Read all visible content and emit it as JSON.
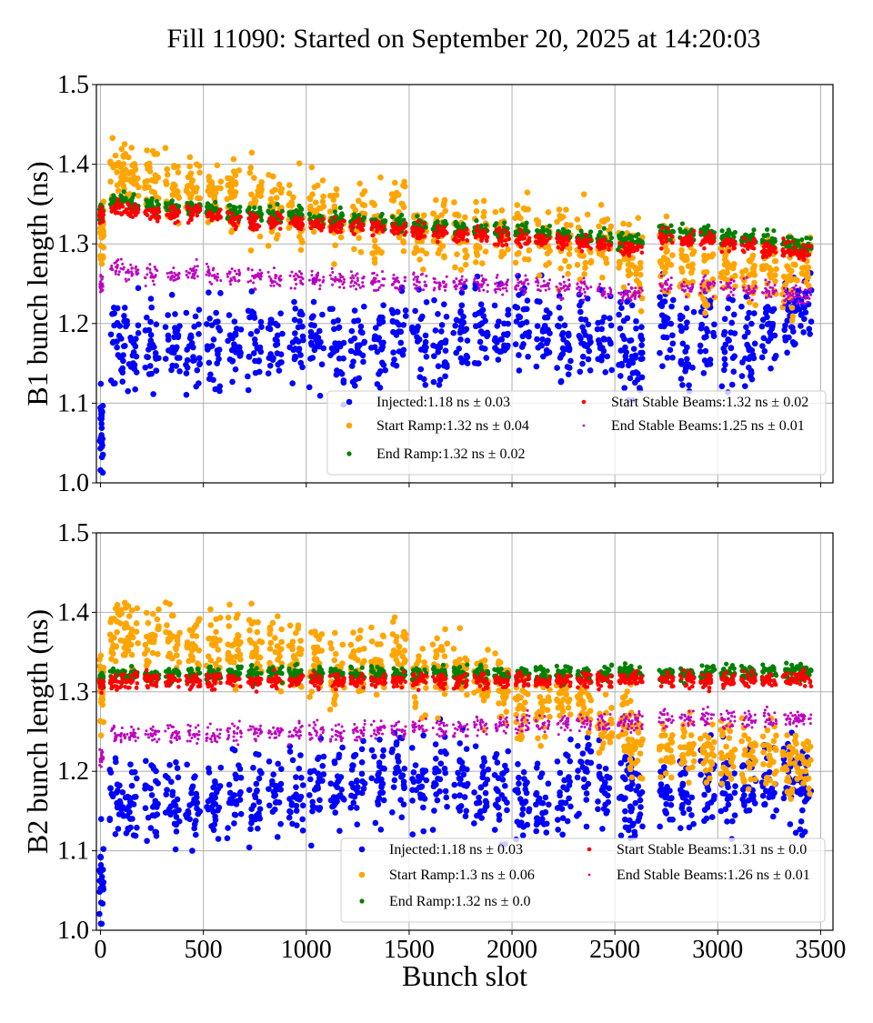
{
  "figure": {
    "title": "Fill 11090: Started on September 20, 2025 at 14:20:03"
  },
  "chart_data": [
    {
      "type": "scatter",
      "panel": "top",
      "ylabel": "B1 bunch length (ns)",
      "xlabel": "",
      "xlim": [
        -20,
        3560
      ],
      "ylim": [
        1.0,
        1.5
      ],
      "xticks": [
        0,
        500,
        1000,
        1500,
        2000,
        2500,
        3000,
        3500
      ],
      "xtick_labels_shown": false,
      "yticks": [
        1.0,
        1.1,
        1.2,
        1.3,
        1.4,
        1.5
      ],
      "ytick_labels": [
        "1.0",
        "1.1",
        "1.2",
        "1.3",
        "1.4",
        "1.5"
      ],
      "grid": true,
      "legend_position": "lower-right",
      "legend_columns": 2,
      "series": [
        {
          "name": "Injected:1.18 ns ± 0.03",
          "color": "#0000ff",
          "marker": "large-dot",
          "mean": 1.18,
          "std": 0.03,
          "x": [
            5,
            80,
            150,
            250,
            350,
            450,
            550,
            650,
            750,
            850,
            950,
            1050,
            1150,
            1250,
            1350,
            1450,
            1550,
            1650,
            1750,
            1850,
            1950,
            2050,
            2150,
            2250,
            2350,
            2450,
            2550,
            2600,
            2750,
            2850,
            2950,
            3050,
            3150,
            3250,
            3350,
            3420
          ],
          "y": [
            1.06,
            1.17,
            1.18,
            1.17,
            1.17,
            1.17,
            1.18,
            1.17,
            1.18,
            1.18,
            1.18,
            1.18,
            1.17,
            1.17,
            1.18,
            1.19,
            1.18,
            1.17,
            1.18,
            1.19,
            1.18,
            1.2,
            1.19,
            1.18,
            1.19,
            1.18,
            1.17,
            1.16,
            1.2,
            1.17,
            1.19,
            1.18,
            1.17,
            1.2,
            1.21,
            1.22
          ]
        },
        {
          "name": "Start Ramp:1.32 ns ± 0.04",
          "color": "#ffa500",
          "marker": "large-dot",
          "mean": 1.32,
          "std": 0.04,
          "x": [
            5,
            80,
            150,
            250,
            350,
            450,
            550,
            650,
            750,
            850,
            950,
            1050,
            1150,
            1250,
            1350,
            1450,
            1550,
            1650,
            1750,
            1850,
            1950,
            2050,
            2150,
            2250,
            2350,
            2450,
            2550,
            2600,
            2750,
            2850,
            2950,
            3050,
            3150,
            3250,
            3350,
            3420
          ],
          "y": [
            1.32,
            1.39,
            1.39,
            1.38,
            1.37,
            1.37,
            1.37,
            1.36,
            1.35,
            1.35,
            1.34,
            1.34,
            1.33,
            1.33,
            1.33,
            1.34,
            1.32,
            1.32,
            1.31,
            1.31,
            1.31,
            1.31,
            1.3,
            1.3,
            1.3,
            1.3,
            1.29,
            1.27,
            1.29,
            1.28,
            1.25,
            1.27,
            1.26,
            1.27,
            1.26,
            1.27
          ]
        },
        {
          "name": "End Ramp:1.32 ns ± 0.02",
          "color": "#008000",
          "marker": "dot",
          "mean": 1.32,
          "std": 0.02,
          "x": [
            5,
            80,
            150,
            250,
            350,
            450,
            550,
            650,
            750,
            850,
            950,
            1050,
            1150,
            1250,
            1350,
            1450,
            1550,
            1650,
            1750,
            1850,
            1950,
            2050,
            2150,
            2250,
            2350,
            2450,
            2550,
            2600,
            2750,
            2850,
            2950,
            3050,
            3150,
            3250,
            3350,
            3420
          ],
          "y": [
            1.34,
            1.354,
            1.352,
            1.348,
            1.346,
            1.346,
            1.343,
            1.34,
            1.337,
            1.336,
            1.335,
            1.333,
            1.331,
            1.329,
            1.327,
            1.326,
            1.324,
            1.322,
            1.32,
            1.318,
            1.316,
            1.315,
            1.313,
            1.311,
            1.309,
            1.307,
            1.303,
            1.302,
            1.316,
            1.313,
            1.312,
            1.309,
            1.306,
            1.303,
            1.3,
            1.298
          ]
        },
        {
          "name": "Start Stable Beams:1.32 ns ± 0.02",
          "color": "#ff0000",
          "marker": "small-dot",
          "mean": 1.32,
          "std": 0.02,
          "x": [
            5,
            80,
            150,
            250,
            350,
            450,
            550,
            650,
            750,
            850,
            950,
            1050,
            1150,
            1250,
            1350,
            1450,
            1550,
            1650,
            1750,
            1850,
            1950,
            2050,
            2150,
            2250,
            2350,
            2450,
            2550,
            2600,
            2750,
            2850,
            2950,
            3050,
            3150,
            3250,
            3350,
            3420
          ],
          "y": [
            1.335,
            1.345,
            1.343,
            1.34,
            1.338,
            1.338,
            1.335,
            1.332,
            1.329,
            1.328,
            1.327,
            1.325,
            1.323,
            1.321,
            1.319,
            1.318,
            1.316,
            1.314,
            1.312,
            1.31,
            1.308,
            1.307,
            1.305,
            1.303,
            1.301,
            1.299,
            1.295,
            1.294,
            1.308,
            1.305,
            1.304,
            1.301,
            1.298,
            1.295,
            1.292,
            1.29
          ]
        },
        {
          "name": "End Stable Beams:1.25 ns ± 0.01",
          "color": "#bf00bf",
          "marker": "tiny-dot",
          "mean": 1.25,
          "std": 0.01,
          "x": [
            5,
            80,
            150,
            250,
            350,
            450,
            550,
            650,
            750,
            850,
            950,
            1050,
            1150,
            1250,
            1350,
            1450,
            1550,
            1650,
            1750,
            1850,
            1950,
            2050,
            2150,
            2250,
            2350,
            2450,
            2550,
            2600,
            2750,
            2850,
            2950,
            3050,
            3150,
            3250,
            3350,
            3420
          ],
          "y": [
            1.25,
            1.27,
            1.265,
            1.262,
            1.26,
            1.262,
            1.26,
            1.258,
            1.258,
            1.257,
            1.256,
            1.255,
            1.255,
            1.254,
            1.253,
            1.252,
            1.252,
            1.25,
            1.25,
            1.249,
            1.248,
            1.25,
            1.247,
            1.245,
            1.243,
            1.24,
            1.238,
            1.237,
            1.25,
            1.247,
            1.248,
            1.246,
            1.243,
            1.24,
            1.238,
            1.236
          ]
        }
      ]
    },
    {
      "type": "scatter",
      "panel": "bottom",
      "ylabel": "B2 bunch length (ns)",
      "xlabel": "Bunch slot",
      "xlim": [
        -20,
        3560
      ],
      "ylim": [
        1.0,
        1.5
      ],
      "xticks": [
        0,
        500,
        1000,
        1500,
        2000,
        2500,
        3000,
        3500
      ],
      "xtick_labels": [
        "0",
        "500",
        "1000",
        "1500",
        "2000",
        "2500",
        "3000",
        "3500"
      ],
      "yticks": [
        1.0,
        1.1,
        1.2,
        1.3,
        1.4,
        1.5
      ],
      "ytick_labels": [
        "1.0",
        "1.1",
        "1.2",
        "1.3",
        "1.4",
        "1.5"
      ],
      "grid": true,
      "legend_position": "lower-right",
      "legend_columns": 2,
      "series": [
        {
          "name": "Injected:1.18 ns ± 0.03",
          "color": "#0000ff",
          "marker": "large-dot",
          "mean": 1.18,
          "std": 0.03,
          "x": [
            5,
            80,
            150,
            250,
            350,
            450,
            550,
            650,
            750,
            850,
            950,
            1050,
            1150,
            1250,
            1350,
            1450,
            1550,
            1650,
            1750,
            1850,
            1950,
            2050,
            2150,
            2250,
            2350,
            2450,
            2550,
            2600,
            2750,
            2850,
            2950,
            3050,
            3150,
            3250,
            3350,
            3420
          ],
          "y": [
            1.06,
            1.16,
            1.16,
            1.17,
            1.17,
            1.16,
            1.16,
            1.17,
            1.17,
            1.17,
            1.18,
            1.18,
            1.18,
            1.18,
            1.19,
            1.2,
            1.18,
            1.19,
            1.19,
            1.18,
            1.17,
            1.16,
            1.16,
            1.18,
            1.19,
            1.18,
            1.19,
            1.16,
            1.17,
            1.17,
            1.18,
            1.18,
            1.18,
            1.19,
            1.19,
            1.18
          ]
        },
        {
          "name": "Start Ramp:1.3 ns ± 0.06",
          "color": "#ffa500",
          "marker": "large-dot",
          "mean": 1.3,
          "std": 0.06,
          "x": [
            5,
            80,
            150,
            250,
            350,
            450,
            550,
            650,
            750,
            850,
            950,
            1050,
            1150,
            1250,
            1350,
            1450,
            1550,
            1650,
            1750,
            1850,
            1950,
            2050,
            2150,
            2250,
            2350,
            2450,
            2550,
            2600,
            2750,
            2850,
            2950,
            3050,
            3150,
            3250,
            3350,
            3420
          ],
          "y": [
            1.3,
            1.375,
            1.37,
            1.37,
            1.37,
            1.36,
            1.36,
            1.36,
            1.36,
            1.35,
            1.34,
            1.34,
            1.33,
            1.34,
            1.34,
            1.35,
            1.32,
            1.33,
            1.32,
            1.31,
            1.3,
            1.28,
            1.28,
            1.29,
            1.28,
            1.26,
            1.27,
            1.23,
            1.23,
            1.23,
            1.22,
            1.22,
            1.22,
            1.22,
            1.21,
            1.21
          ]
        },
        {
          "name": "End Ramp:1.32 ns ± 0.0",
          "color": "#008000",
          "marker": "dot",
          "mean": 1.32,
          "std": 0.0,
          "x": [
            5,
            80,
            150,
            250,
            350,
            450,
            550,
            650,
            750,
            850,
            950,
            1050,
            1150,
            1250,
            1350,
            1450,
            1550,
            1650,
            1750,
            1850,
            1950,
            2050,
            2150,
            2250,
            2350,
            2450,
            2550,
            2600,
            2750,
            2850,
            2950,
            3050,
            3150,
            3250,
            3350,
            3420
          ],
          "y": [
            1.315,
            1.322,
            1.322,
            1.322,
            1.322,
            1.322,
            1.322,
            1.323,
            1.323,
            1.323,
            1.323,
            1.323,
            1.323,
            1.323,
            1.323,
            1.323,
            1.323,
            1.323,
            1.323,
            1.323,
            1.322,
            1.322,
            1.322,
            1.322,
            1.322,
            1.324,
            1.324,
            1.322,
            1.322,
            1.322,
            1.322,
            1.324,
            1.324,
            1.324,
            1.325,
            1.326
          ]
        },
        {
          "name": "Start Stable Beams:1.31 ns ± 0.0",
          "color": "#ff0000",
          "marker": "small-dot",
          "mean": 1.31,
          "std": 0.0,
          "x": [
            5,
            80,
            150,
            250,
            350,
            450,
            550,
            650,
            750,
            850,
            950,
            1050,
            1150,
            1250,
            1350,
            1450,
            1550,
            1650,
            1750,
            1850,
            1950,
            2050,
            2150,
            2250,
            2350,
            2450,
            2550,
            2600,
            2750,
            2850,
            2950,
            3050,
            3150,
            3250,
            3350,
            3420
          ],
          "y": [
            1.31,
            1.313,
            1.313,
            1.314,
            1.314,
            1.314,
            1.314,
            1.314,
            1.314,
            1.314,
            1.314,
            1.314,
            1.314,
            1.314,
            1.314,
            1.314,
            1.314,
            1.314,
            1.314,
            1.314,
            1.314,
            1.314,
            1.314,
            1.314,
            1.314,
            1.315,
            1.315,
            1.316,
            1.316,
            1.316,
            1.316,
            1.316,
            1.316,
            1.316,
            1.316,
            1.316
          ]
        },
        {
          "name": "End Stable Beams:1.26 ns ± 0.01",
          "color": "#bf00bf",
          "marker": "tiny-dot",
          "mean": 1.26,
          "std": 0.01,
          "x": [
            5,
            80,
            150,
            250,
            350,
            450,
            550,
            650,
            750,
            850,
            950,
            1050,
            1150,
            1250,
            1350,
            1450,
            1550,
            1650,
            1750,
            1850,
            1950,
            2050,
            2150,
            2250,
            2350,
            2450,
            2550,
            2600,
            2750,
            2850,
            2950,
            3050,
            3150,
            3250,
            3350,
            3420
          ],
          "y": [
            1.22,
            1.245,
            1.245,
            1.246,
            1.246,
            1.246,
            1.246,
            1.248,
            1.249,
            1.25,
            1.25,
            1.25,
            1.25,
            1.25,
            1.252,
            1.252,
            1.253,
            1.254,
            1.255,
            1.256,
            1.258,
            1.26,
            1.26,
            1.26,
            1.26,
            1.262,
            1.263,
            1.265,
            1.265,
            1.266,
            1.266,
            1.266,
            1.266,
            1.266,
            1.266,
            1.266
          ]
        }
      ]
    }
  ]
}
